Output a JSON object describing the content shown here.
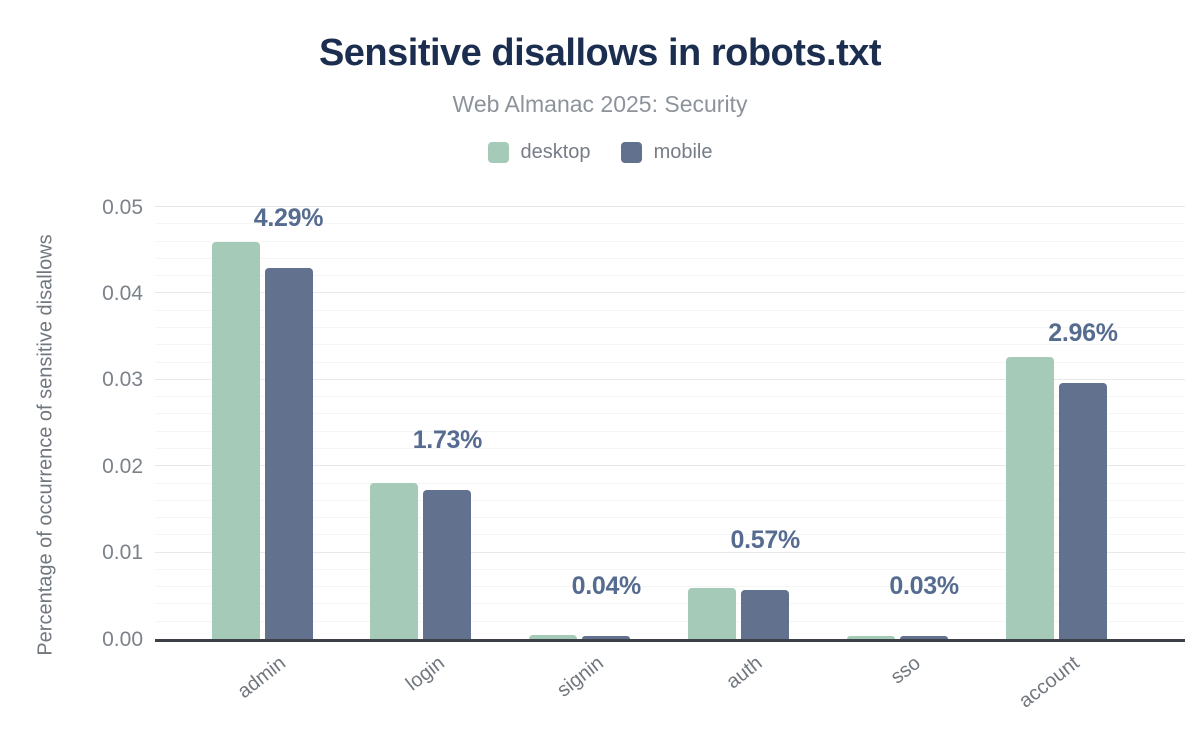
{
  "header": {
    "title": "Sensitive disallows in robots.txt",
    "subtitle": "Web Almanac 2025: Security"
  },
  "legend": {
    "items": [
      {
        "label": "desktop",
        "color": "#a6cab8"
      },
      {
        "label": "mobile",
        "color": "#61718e"
      }
    ]
  },
  "chart_data": {
    "type": "bar",
    "title": "Sensitive disallows in robots.txt",
    "subtitle": "Web Almanac 2025: Security",
    "categories": [
      "admin",
      "login",
      "signin",
      "auth",
      "sso",
      "account"
    ],
    "series": [
      {
        "name": "desktop",
        "color": "#a6cab8",
        "values": [
          0.046,
          0.0181,
          0.0005,
          0.0059,
          0.0003,
          0.0326
        ]
      },
      {
        "name": "mobile",
        "color": "#61718e",
        "values": [
          0.0429,
          0.0173,
          0.0004,
          0.0057,
          0.0003,
          0.0296
        ]
      }
    ],
    "value_labels": [
      "4.29%",
      "1.73%",
      "0.04%",
      "0.57%",
      "0.03%",
      "2.96%"
    ],
    "value_labels_series": "mobile",
    "xlabel": "",
    "ylabel": "Percentage of occurrence of sensitive disallows",
    "ylim": [
      0,
      0.05
    ],
    "yticks": [
      "0.00",
      "0.01",
      "0.02",
      "0.03",
      "0.04",
      "0.05"
    ],
    "ytick_values": [
      0,
      0.01,
      0.02,
      0.03,
      0.04,
      0.05
    ],
    "minor_grid_step": 0.002,
    "grid": "horizontal-major-and-minor",
    "legend_position": "top"
  },
  "colors": {
    "background": "#ffffff",
    "title": "#1c2e50",
    "subtitle": "#8d939b",
    "legend_text": "#767d86",
    "tick_text": "#7b8289",
    "axis_text": "#71777e",
    "value_label": "#566b90",
    "baseline": "#3b4147",
    "major_grid": "#e6e8e9",
    "minor_grid": "#f4f5f5",
    "desktop": "#a6cab8",
    "mobile": "#61718e"
  }
}
